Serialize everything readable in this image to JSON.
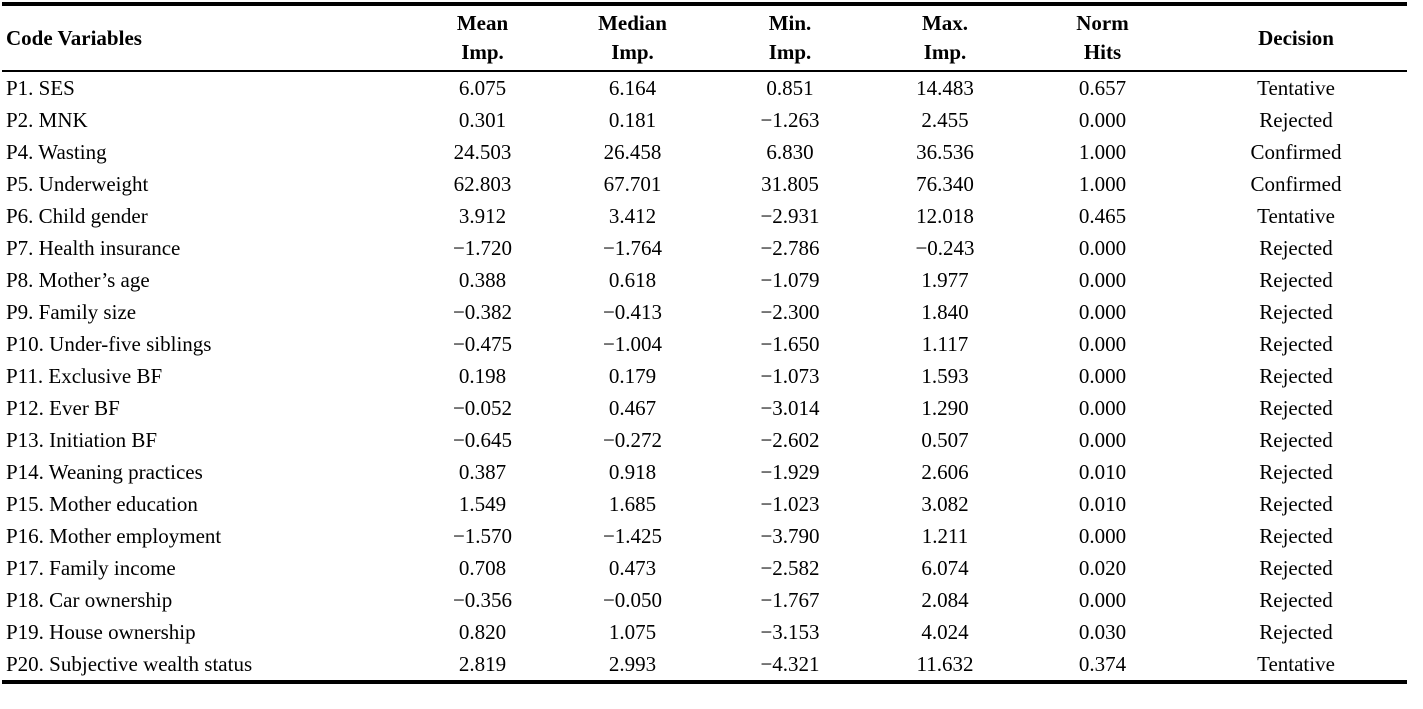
{
  "table": {
    "columns": [
      {
        "line1": "Code Variables",
        "line2": ""
      },
      {
        "line1": "Mean",
        "line2": "Imp."
      },
      {
        "line1": "Median",
        "line2": "Imp."
      },
      {
        "line1": "Min.",
        "line2": "Imp."
      },
      {
        "line1": "Max.",
        "line2": "Imp."
      },
      {
        "line1": "Norm",
        "line2": "Hits"
      },
      {
        "line1": "Decision",
        "line2": ""
      }
    ],
    "rows": [
      {
        "variable": "P1. SES",
        "mean": "6.075",
        "median": "6.164",
        "min": "0.851",
        "max": "14.483",
        "norm_hits": "0.657",
        "decision": "Tentative"
      },
      {
        "variable": "P2. MNK",
        "mean": "0.301",
        "median": "0.181",
        "min": "−1.263",
        "max": "2.455",
        "norm_hits": "0.000",
        "decision": "Rejected"
      },
      {
        "variable": "P4. Wasting",
        "mean": "24.503",
        "median": "26.458",
        "min": "6.830",
        "max": "36.536",
        "norm_hits": "1.000",
        "decision": "Confirmed"
      },
      {
        "variable": "P5. Underweight",
        "mean": "62.803",
        "median": "67.701",
        "min": "31.805",
        "max": "76.340",
        "norm_hits": "1.000",
        "decision": "Confirmed"
      },
      {
        "variable": "P6. Child gender",
        "mean": "3.912",
        "median": "3.412",
        "min": "−2.931",
        "max": "12.018",
        "norm_hits": "0.465",
        "decision": "Tentative"
      },
      {
        "variable": "P7. Health insurance",
        "mean": "−1.720",
        "median": "−1.764",
        "min": "−2.786",
        "max": "−0.243",
        "norm_hits": "0.000",
        "decision": "Rejected"
      },
      {
        "variable": "P8. Mother’s age",
        "mean": "0.388",
        "median": "0.618",
        "min": "−1.079",
        "max": "1.977",
        "norm_hits": "0.000",
        "decision": "Rejected"
      },
      {
        "variable": "P9. Family size",
        "mean": "−0.382",
        "median": "−0.413",
        "min": "−2.300",
        "max": "1.840",
        "norm_hits": "0.000",
        "decision": "Rejected"
      },
      {
        "variable": "P10. Under-five siblings",
        "mean": "−0.475",
        "median": "−1.004",
        "min": "−1.650",
        "max": "1.117",
        "norm_hits": "0.000",
        "decision": "Rejected"
      },
      {
        "variable": "P11. Exclusive BF",
        "mean": "0.198",
        "median": "0.179",
        "min": "−1.073",
        "max": "1.593",
        "norm_hits": "0.000",
        "decision": "Rejected"
      },
      {
        "variable": "P12. Ever BF",
        "mean": "−0.052",
        "median": "0.467",
        "min": "−3.014",
        "max": "1.290",
        "norm_hits": "0.000",
        "decision": "Rejected"
      },
      {
        "variable": "P13. Initiation BF",
        "mean": "−0.645",
        "median": "−0.272",
        "min": "−2.602",
        "max": "0.507",
        "norm_hits": "0.000",
        "decision": "Rejected"
      },
      {
        "variable": "P14. Weaning practices",
        "mean": "0.387",
        "median": "0.918",
        "min": "−1.929",
        "max": "2.606",
        "norm_hits": "0.010",
        "decision": "Rejected"
      },
      {
        "variable": "P15. Mother education",
        "mean": "1.549",
        "median": "1.685",
        "min": "−1.023",
        "max": "3.082",
        "norm_hits": "0.010",
        "decision": "Rejected"
      },
      {
        "variable": "P16. Mother employment",
        "mean": "−1.570",
        "median": "−1.425",
        "min": "−3.790",
        "max": "1.211",
        "norm_hits": "0.000",
        "decision": "Rejected"
      },
      {
        "variable": "P17. Family income",
        "mean": "0.708",
        "median": "0.473",
        "min": "−2.582",
        "max": "6.074",
        "norm_hits": "0.020",
        "decision": "Rejected"
      },
      {
        "variable": "P18. Car ownership",
        "mean": "−0.356",
        "median": "−0.050",
        "min": "−1.767",
        "max": "2.084",
        "norm_hits": "0.000",
        "decision": "Rejected"
      },
      {
        "variable": "P19. House ownership",
        "mean": "0.820",
        "median": "1.075",
        "min": "−3.153",
        "max": "4.024",
        "norm_hits": "0.030",
        "decision": "Rejected"
      },
      {
        "variable": "P20. Subjective wealth status",
        "mean": "2.819",
        "median": "2.993",
        "min": "−4.321",
        "max": "11.632",
        "norm_hits": "0.374",
        "decision": "Tentative"
      }
    ]
  }
}
